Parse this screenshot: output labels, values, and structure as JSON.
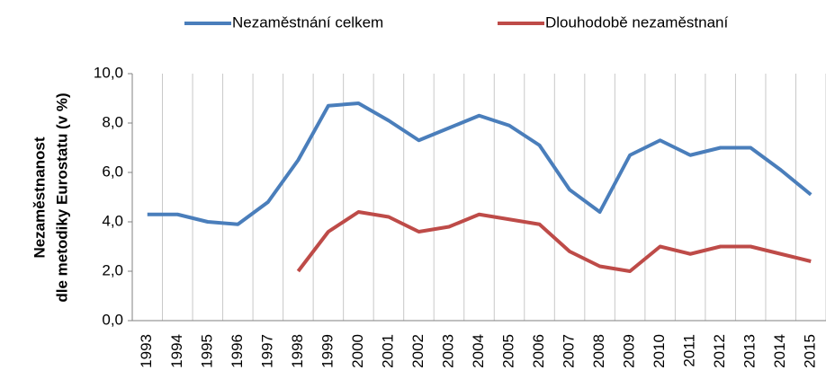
{
  "chart_data": {
    "type": "line",
    "ylabel": [
      "Nezaměstnanost",
      "dle metodiky Eurostatu (v %)"
    ],
    "categories": [
      "1993",
      "1994",
      "1995",
      "1996",
      "1997",
      "1998",
      "1999",
      "2000",
      "2001",
      "2002",
      "2003",
      "2004",
      "2005",
      "2006",
      "2007",
      "2008",
      "2009",
      "2010",
      "2011",
      "2012",
      "2013",
      "2014",
      "2015"
    ],
    "series": [
      {
        "name": "Nezaměstnání celkem",
        "color": "#4a7ebb",
        "values": [
          4.3,
          4.3,
          4.0,
          3.9,
          4.8,
          6.5,
          8.7,
          8.8,
          8.1,
          7.3,
          7.8,
          8.3,
          7.9,
          7.1,
          5.3,
          4.4,
          6.7,
          7.3,
          6.7,
          7.0,
          7.0,
          6.1,
          5.1
        ]
      },
      {
        "name": "Dlouhodobě nezaměstnaní",
        "color": "#be4b48",
        "values": [
          null,
          null,
          null,
          null,
          null,
          2.0,
          3.6,
          4.4,
          4.2,
          3.6,
          3.8,
          4.3,
          4.1,
          3.9,
          2.8,
          2.2,
          2.0,
          3.0,
          2.7,
          3.0,
          3.0,
          2.7,
          2.4
        ]
      }
    ],
    "ylim": [
      0,
      10
    ],
    "yticks": [
      {
        "value": 0,
        "label": "0,0"
      },
      {
        "value": 2,
        "label": "2,0"
      },
      {
        "value": 4,
        "label": "4,0"
      },
      {
        "value": 6,
        "label": "6,0"
      },
      {
        "value": 8,
        "label": "8,0"
      },
      {
        "value": 10,
        "label": "10,0"
      }
    ],
    "grid": "vertical",
    "legend": "top"
  }
}
